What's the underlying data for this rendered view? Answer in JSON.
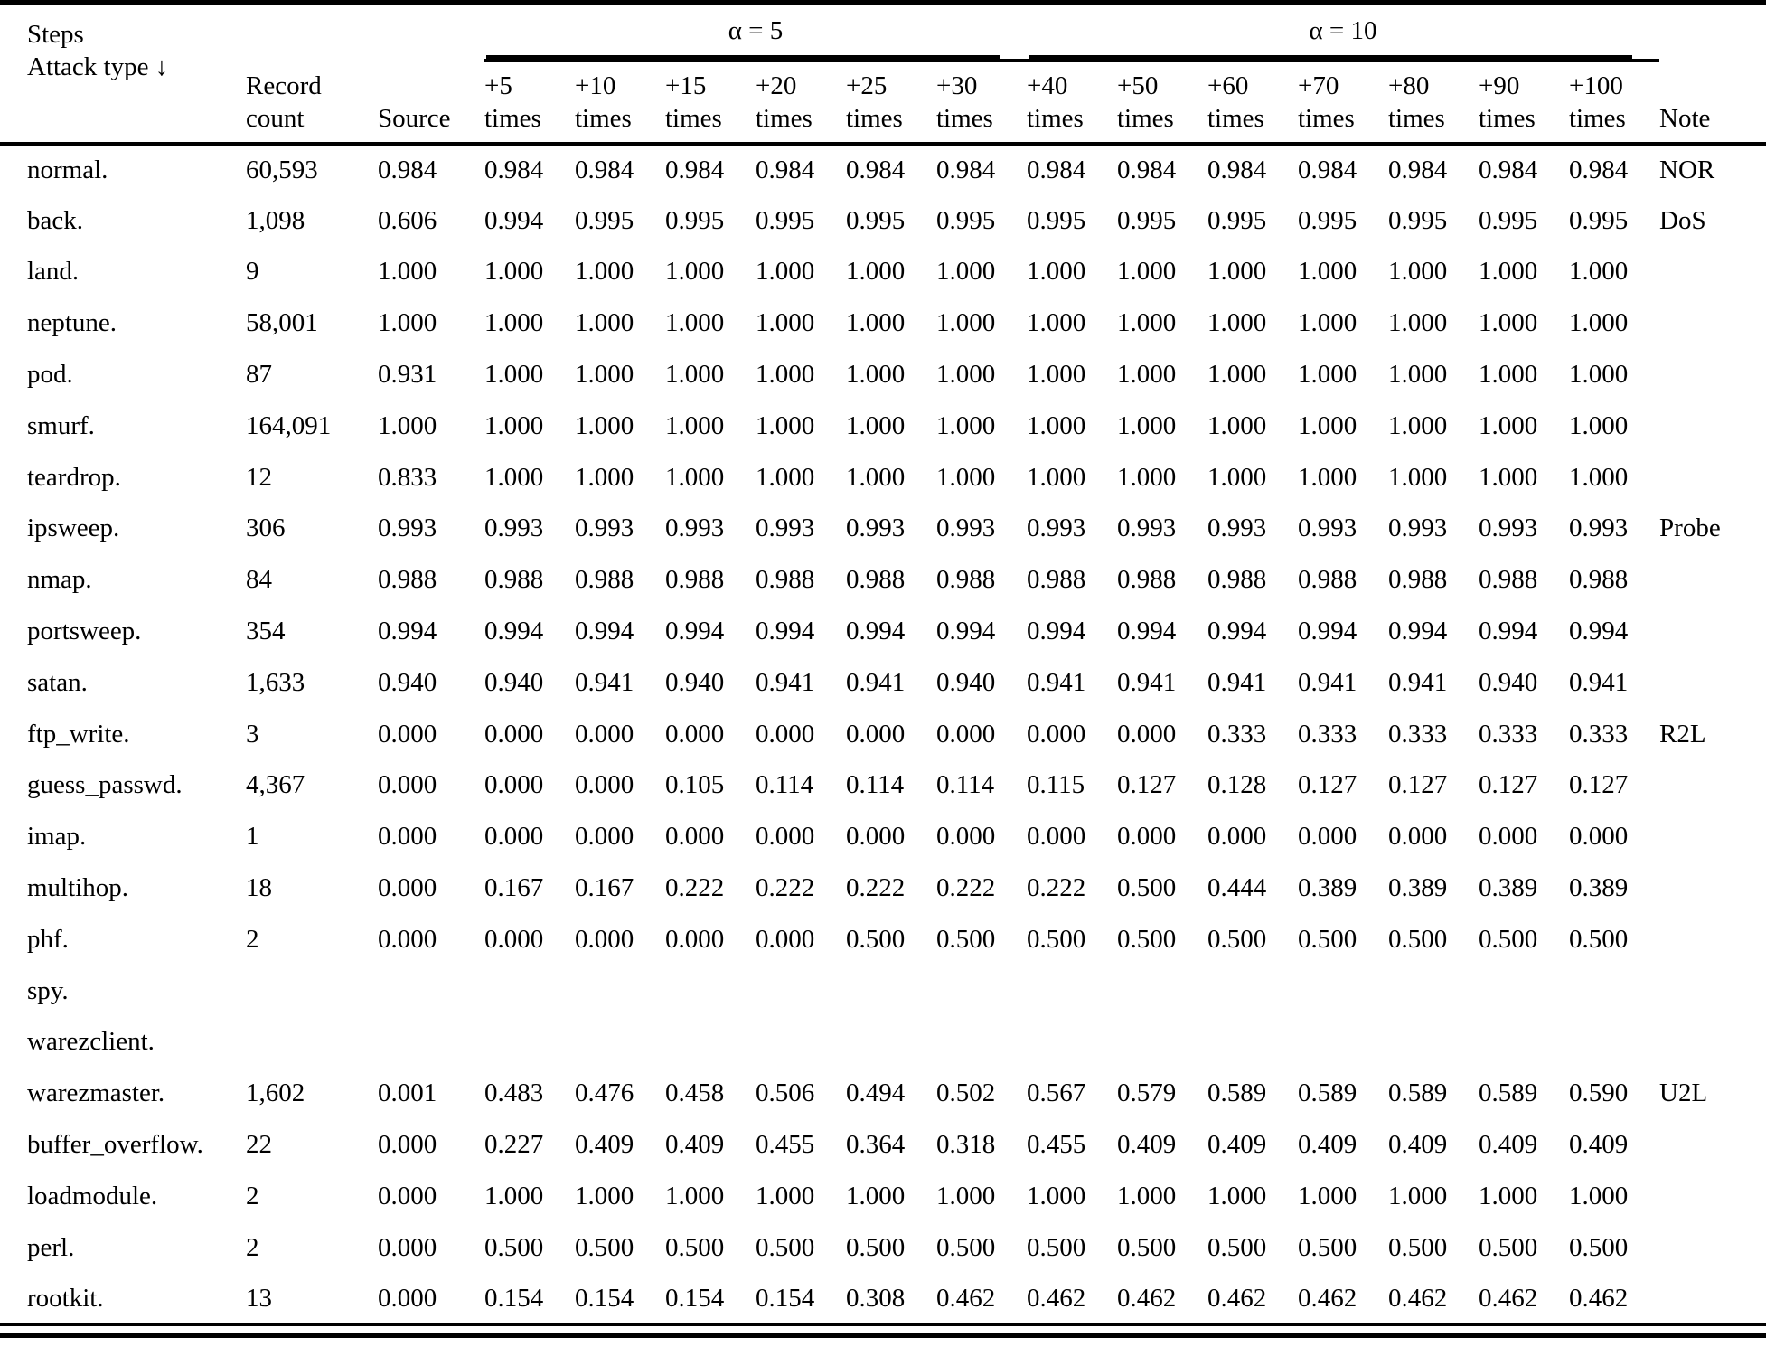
{
  "colors": {
    "text": "#000000",
    "background": "#ffffff",
    "rule": "#000000"
  },
  "table": {
    "corner_header": "Steps\nAttack type ↓",
    "columns": {
      "record": "Record\ncount",
      "source": "Source",
      "note": "Note"
    },
    "groups": [
      {
        "label": "α = 5",
        "cols": [
          "+5\ntimes",
          "+10\ntimes",
          "+15\ntimes",
          "+20\ntimes",
          "+25\ntimes",
          "+30\ntimes"
        ]
      },
      {
        "label": "α = 10",
        "cols": [
          "+40\ntimes",
          "+50\ntimes",
          "+60\ntimes",
          "+70\ntimes",
          "+80\ntimes",
          "+90\ntimes",
          "+100\ntimes"
        ]
      }
    ],
    "rows": [
      {
        "attack": "normal.",
        "record": "60,593",
        "source": "0.984",
        "alpha5": [
          "0.984",
          "0.984",
          "0.984",
          "0.984",
          "0.984",
          "0.984"
        ],
        "alpha10": [
          "0.984",
          "0.984",
          "0.984",
          "0.984",
          "0.984",
          "0.984",
          "0.984"
        ],
        "note": "NOR"
      },
      {
        "attack": "back.",
        "record": "1,098",
        "source": "0.606",
        "alpha5": [
          "0.994",
          "0.995",
          "0.995",
          "0.995",
          "0.995",
          "0.995"
        ],
        "alpha10": [
          "0.995",
          "0.995",
          "0.995",
          "0.995",
          "0.995",
          "0.995",
          "0.995"
        ],
        "note": "DoS"
      },
      {
        "attack": "land.",
        "record": "9",
        "source": "1.000",
        "alpha5": [
          "1.000",
          "1.000",
          "1.000",
          "1.000",
          "1.000",
          "1.000"
        ],
        "alpha10": [
          "1.000",
          "1.000",
          "1.000",
          "1.000",
          "1.000",
          "1.000",
          "1.000"
        ],
        "note": ""
      },
      {
        "attack": "neptune.",
        "record": "58,001",
        "source": "1.000",
        "alpha5": [
          "1.000",
          "1.000",
          "1.000",
          "1.000",
          "1.000",
          "1.000"
        ],
        "alpha10": [
          "1.000",
          "1.000",
          "1.000",
          "1.000",
          "1.000",
          "1.000",
          "1.000"
        ],
        "note": ""
      },
      {
        "attack": "pod.",
        "record": "87",
        "source": "0.931",
        "alpha5": [
          "1.000",
          "1.000",
          "1.000",
          "1.000",
          "1.000",
          "1.000"
        ],
        "alpha10": [
          "1.000",
          "1.000",
          "1.000",
          "1.000",
          "1.000",
          "1.000",
          "1.000"
        ],
        "note": ""
      },
      {
        "attack": "smurf.",
        "record": "164,091",
        "source": "1.000",
        "alpha5": [
          "1.000",
          "1.000",
          "1.000",
          "1.000",
          "1.000",
          "1.000"
        ],
        "alpha10": [
          "1.000",
          "1.000",
          "1.000",
          "1.000",
          "1.000",
          "1.000",
          "1.000"
        ],
        "note": ""
      },
      {
        "attack": "teardrop.",
        "record": "12",
        "source": "0.833",
        "alpha5": [
          "1.000",
          "1.000",
          "1.000",
          "1.000",
          "1.000",
          "1.000"
        ],
        "alpha10": [
          "1.000",
          "1.000",
          "1.000",
          "1.000",
          "1.000",
          "1.000",
          "1.000"
        ],
        "note": ""
      },
      {
        "attack": "ipsweep.",
        "record": "306",
        "source": "0.993",
        "alpha5": [
          "0.993",
          "0.993",
          "0.993",
          "0.993",
          "0.993",
          "0.993"
        ],
        "alpha10": [
          "0.993",
          "0.993",
          "0.993",
          "0.993",
          "0.993",
          "0.993",
          "0.993"
        ],
        "note": "Probe"
      },
      {
        "attack": "nmap.",
        "record": "84",
        "source": "0.988",
        "alpha5": [
          "0.988",
          "0.988",
          "0.988",
          "0.988",
          "0.988",
          "0.988"
        ],
        "alpha10": [
          "0.988",
          "0.988",
          "0.988",
          "0.988",
          "0.988",
          "0.988",
          "0.988"
        ],
        "note": ""
      },
      {
        "attack": "portsweep.",
        "record": "354",
        "source": "0.994",
        "alpha5": [
          "0.994",
          "0.994",
          "0.994",
          "0.994",
          "0.994",
          "0.994"
        ],
        "alpha10": [
          "0.994",
          "0.994",
          "0.994",
          "0.994",
          "0.994",
          "0.994",
          "0.994"
        ],
        "note": ""
      },
      {
        "attack": "satan.",
        "record": "1,633",
        "source": "0.940",
        "alpha5": [
          "0.940",
          "0.941",
          "0.940",
          "0.941",
          "0.941",
          "0.940"
        ],
        "alpha10": [
          "0.941",
          "0.941",
          "0.941",
          "0.941",
          "0.941",
          "0.940",
          "0.941"
        ],
        "note": ""
      },
      {
        "attack": "ftp_write.",
        "record": "3",
        "source": "0.000",
        "alpha5": [
          "0.000",
          "0.000",
          "0.000",
          "0.000",
          "0.000",
          "0.000"
        ],
        "alpha10": [
          "0.000",
          "0.000",
          "0.333",
          "0.333",
          "0.333",
          "0.333",
          "0.333"
        ],
        "note": "R2L"
      },
      {
        "attack": "guess_passwd.",
        "record": "4,367",
        "source": "0.000",
        "alpha5": [
          "0.000",
          "0.000",
          "0.105",
          "0.114",
          "0.114",
          "0.114"
        ],
        "alpha10": [
          "0.115",
          "0.127",
          "0.128",
          "0.127",
          "0.127",
          "0.127",
          "0.127"
        ],
        "note": ""
      },
      {
        "attack": "imap.",
        "record": "1",
        "source": "0.000",
        "alpha5": [
          "0.000",
          "0.000",
          "0.000",
          "0.000",
          "0.000",
          "0.000"
        ],
        "alpha10": [
          "0.000",
          "0.000",
          "0.000",
          "0.000",
          "0.000",
          "0.000",
          "0.000"
        ],
        "note": ""
      },
      {
        "attack": "multihop.",
        "record": "18",
        "source": "0.000",
        "alpha5": [
          "0.167",
          "0.167",
          "0.222",
          "0.222",
          "0.222",
          "0.222"
        ],
        "alpha10": [
          "0.222",
          "0.500",
          "0.444",
          "0.389",
          "0.389",
          "0.389",
          "0.389"
        ],
        "note": ""
      },
      {
        "attack": "phf.",
        "record": "2",
        "source": "0.000",
        "alpha5": [
          "0.000",
          "0.000",
          "0.000",
          "0.000",
          "0.500",
          "0.500"
        ],
        "alpha10": [
          "0.500",
          "0.500",
          "0.500",
          "0.500",
          "0.500",
          "0.500",
          "0.500"
        ],
        "note": ""
      },
      {
        "attack": "spy.",
        "record": "",
        "source": "",
        "alpha5": [
          "",
          "",
          "",
          "",
          "",
          ""
        ],
        "alpha10": [
          "",
          "",
          "",
          "",
          "",
          "",
          ""
        ],
        "note": ""
      },
      {
        "attack": "warezclient.",
        "record": "",
        "source": "",
        "alpha5": [
          "",
          "",
          "",
          "",
          "",
          ""
        ],
        "alpha10": [
          "",
          "",
          "",
          "",
          "",
          "",
          ""
        ],
        "note": ""
      },
      {
        "attack": "warezmaster.",
        "record": "1,602",
        "source": "0.001",
        "alpha5": [
          "0.483",
          "0.476",
          "0.458",
          "0.506",
          "0.494",
          "0.502"
        ],
        "alpha10": [
          "0.567",
          "0.579",
          "0.589",
          "0.589",
          "0.589",
          "0.589",
          "0.590"
        ],
        "note": "U2L"
      },
      {
        "attack": "buffer_overflow.",
        "record": "22",
        "source": "0.000",
        "alpha5": [
          "0.227",
          "0.409",
          "0.409",
          "0.455",
          "0.364",
          "0.318"
        ],
        "alpha10": [
          "0.455",
          "0.409",
          "0.409",
          "0.409",
          "0.409",
          "0.409",
          "0.409"
        ],
        "note": ""
      },
      {
        "attack": "loadmodule.",
        "record": "2",
        "source": "0.000",
        "alpha5": [
          "1.000",
          "1.000",
          "1.000",
          "1.000",
          "1.000",
          "1.000"
        ],
        "alpha10": [
          "1.000",
          "1.000",
          "1.000",
          "1.000",
          "1.000",
          "1.000",
          "1.000"
        ],
        "note": ""
      },
      {
        "attack": "perl.",
        "record": "2",
        "source": "0.000",
        "alpha5": [
          "0.500",
          "0.500",
          "0.500",
          "0.500",
          "0.500",
          "0.500"
        ],
        "alpha10": [
          "0.500",
          "0.500",
          "0.500",
          "0.500",
          "0.500",
          "0.500",
          "0.500"
        ],
        "note": ""
      },
      {
        "attack": "rootkit.",
        "record": "13",
        "source": "0.000",
        "alpha5": [
          "0.154",
          "0.154",
          "0.154",
          "0.154",
          "0.308",
          "0.462"
        ],
        "alpha10": [
          "0.462",
          "0.462",
          "0.462",
          "0.462",
          "0.462",
          "0.462",
          "0.462"
        ],
        "note": ""
      }
    ]
  }
}
